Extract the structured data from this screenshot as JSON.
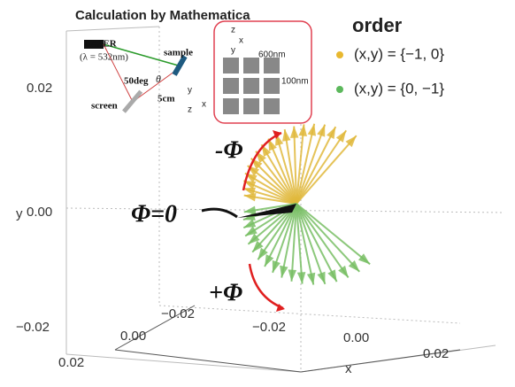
{
  "title": "Calculation by Mathematica",
  "legend": {
    "title": "order",
    "items": [
      "(x,y) = {−1, 0}",
      "(x,y) = {0, −1}"
    ]
  },
  "axes": {
    "y_label": "y",
    "y_ticks": [
      "0.02",
      "0.00",
      "−0.02"
    ],
    "x_label": "x",
    "x_ticks": [
      "−0.02",
      "0.00",
      "0.02"
    ],
    "z_ticks": [
      "−0.02",
      "0.00",
      "0.02"
    ]
  },
  "annotations": [
    "-Φ",
    "Φ=0",
    "+Φ"
  ],
  "inset": {
    "laser": "LASER",
    "wavelength": "(λ = 532nm)",
    "sample": "sample",
    "angle": "50deg",
    "theta": "θ",
    "distance": "5cm",
    "screen": "screen",
    "axes_top": [
      "z",
      "x",
      "y"
    ],
    "axes_bottom": [
      "y",
      "z",
      "x"
    ],
    "period": "600nm",
    "gap": "100nm"
  }
}
